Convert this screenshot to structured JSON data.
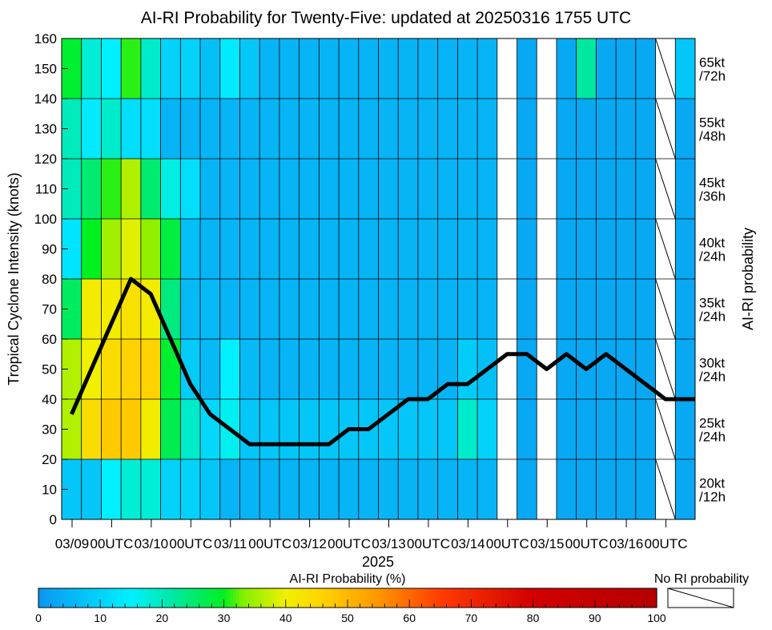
{
  "chart_data": {
    "type": "heatmap",
    "title": "AI-RI Probability for Twenty-Five: updated at 20250316 1755 UTC",
    "ylabel": "Tropical Cyclone Intensity (knots)",
    "right_label": "AI-RI probability",
    "xlabel_year": "2025",
    "ylim": [
      0,
      160
    ],
    "y_ticks": [
      0,
      10,
      20,
      30,
      40,
      50,
      60,
      70,
      80,
      90,
      100,
      110,
      120,
      130,
      140,
      150,
      160
    ],
    "x_tick_labels": [
      "03/09",
      "00UTC",
      "03/10",
      "00UTC",
      "03/11",
      "00UTC",
      "03/12",
      "00UTC",
      "03/13",
      "00UTC",
      "03/14",
      "00UTC",
      "03/15",
      "00UTC",
      "03/16",
      "00UTC"
    ],
    "time_columns": 32,
    "band_labels": [
      {
        "speed": "20kt",
        "period": "/12h"
      },
      {
        "speed": "25kt",
        "period": "/24h"
      },
      {
        "speed": "30kt",
        "period": "/24h"
      },
      {
        "speed": "35kt",
        "period": "/24h"
      },
      {
        "speed": "40kt",
        "period": "/24h"
      },
      {
        "speed": "45kt",
        "period": "/36h"
      },
      {
        "speed": "55kt",
        "period": "/48h"
      },
      {
        "speed": "65kt",
        "period": "/72h"
      }
    ],
    "band_ranges_kt": [
      [
        0,
        20
      ],
      [
        20,
        40
      ],
      [
        40,
        60
      ],
      [
        60,
        80
      ],
      [
        80,
        100
      ],
      [
        100,
        120
      ],
      [
        120,
        140
      ],
      [
        140,
        160
      ]
    ],
    "probabilities": [
      [
        8,
        8,
        15,
        18,
        18,
        10,
        10,
        8,
        5,
        5,
        5,
        5,
        5,
        5,
        5,
        5,
        5,
        5,
        5,
        5,
        5,
        5,
        -1,
        3,
        -1,
        3,
        3,
        3,
        3,
        3,
        -2,
        3
      ],
      [
        36,
        44,
        47,
        47,
        41,
        27,
        19,
        11,
        16,
        8,
        8,
        8,
        8,
        8,
        8,
        8,
        8,
        8,
        8,
        8,
        19,
        10,
        -1,
        3,
        -1,
        3,
        3,
        3,
        3,
        3,
        -2,
        3
      ],
      [
        36,
        40,
        44,
        46,
        46,
        29,
        9,
        6,
        15,
        6,
        5,
        5,
        5,
        5,
        5,
        5,
        5,
        5,
        5,
        5,
        9,
        7,
        -1,
        3,
        -1,
        3,
        3,
        3,
        3,
        3,
        -2,
        3
      ],
      [
        26,
        41,
        41,
        43,
        41,
        24,
        6,
        6,
        5,
        5,
        5,
        5,
        5,
        5,
        5,
        5,
        5,
        5,
        5,
        5,
        5,
        5,
        -1,
        3,
        -1,
        3,
        3,
        3,
        3,
        3,
        -2,
        3
      ],
      [
        13,
        30,
        35,
        39,
        34,
        28,
        7,
        5,
        5,
        5,
        5,
        5,
        5,
        5,
        5,
        5,
        5,
        5,
        5,
        5,
        5,
        5,
        -1,
        3,
        -1,
        3,
        3,
        3,
        3,
        3,
        -2,
        3
      ],
      [
        20,
        25,
        31,
        36,
        25,
        17,
        12,
        5,
        5,
        5,
        5,
        5,
        5,
        5,
        5,
        5,
        5,
        5,
        5,
        5,
        5,
        5,
        -1,
        3,
        -1,
        3,
        3,
        3,
        3,
        3,
        -2,
        3
      ],
      [
        20,
        14,
        19,
        12,
        12,
        5,
        5,
        5,
        5,
        5,
        5,
        5,
        5,
        5,
        5,
        5,
        5,
        5,
        5,
        5,
        5,
        5,
        -1,
        3,
        -1,
        3,
        3,
        3,
        3,
        3,
        -2,
        3
      ],
      [
        29,
        18,
        15,
        31,
        19,
        10,
        10,
        7,
        14,
        8,
        5,
        5,
        5,
        5,
        5,
        5,
        5,
        5,
        5,
        5,
        5,
        5,
        -1,
        3,
        -1,
        3,
        22,
        3,
        3,
        3,
        -2,
        8
      ]
    ],
    "probability_legend_note": "-1 = no data (white), -2 = no RI probability (hatched)",
    "intensity_series": {
      "name": "Tropical Cyclone Intensity",
      "x_index": [
        0.5,
        1.5,
        2.5,
        3.5,
        4.5,
        5.5,
        6.5,
        7.5,
        8.5,
        9.5,
        10.5,
        11.5,
        12.5,
        13.5,
        14.5,
        15.5,
        16.5,
        17.5,
        18.5,
        19.5,
        20.5,
        21.5,
        22.5,
        23.5,
        24.5,
        25.5,
        26.5,
        27.5,
        28.5,
        29.5,
        30.5,
        31.5,
        32.0
      ],
      "values": [
        35,
        50,
        65,
        80,
        75,
        60,
        45,
        35,
        30,
        25,
        25,
        25,
        25,
        25,
        30,
        30,
        35,
        40,
        40,
        45,
        45,
        50,
        55,
        55,
        50,
        55,
        50,
        55,
        50,
        45,
        40,
        40,
        40
      ]
    },
    "colorbar": {
      "label": "AI-RI Probability (%)",
      "range": [
        0,
        100
      ],
      "ticks": [
        0,
        10,
        20,
        30,
        40,
        50,
        60,
        70,
        80,
        90,
        100
      ],
      "stops": [
        {
          "v": 0,
          "color": "#0a96f0"
        },
        {
          "v": 15,
          "color": "#00f0ff"
        },
        {
          "v": 22,
          "color": "#00e8a0"
        },
        {
          "v": 30,
          "color": "#00f020"
        },
        {
          "v": 33,
          "color": "#80f000"
        },
        {
          "v": 40,
          "color": "#f0f000"
        },
        {
          "v": 46,
          "color": "#ffd200"
        },
        {
          "v": 55,
          "color": "#ff9600"
        },
        {
          "v": 65,
          "color": "#ff3c00"
        },
        {
          "v": 80,
          "color": "#d20000"
        },
        {
          "v": 100,
          "color": "#b40000"
        }
      ]
    },
    "no_ri_label": "No RI probability",
    "line_color": "#000000",
    "no_data_color": "#ffffff"
  }
}
